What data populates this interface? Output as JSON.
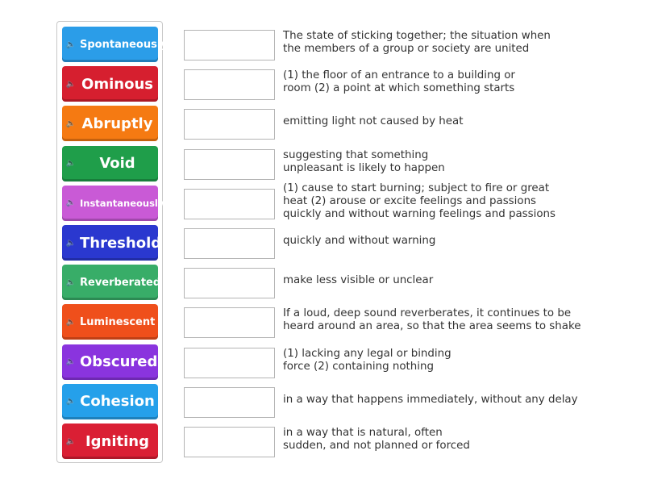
{
  "tiles": [
    {
      "label": "Spontaneously",
      "color": "#2b9de8",
      "size": "small"
    },
    {
      "label": "Ominous",
      "color": "#d61f2f",
      "size": "big"
    },
    {
      "label": "Abruptly",
      "color": "#f57a12",
      "size": "big"
    },
    {
      "label": "Void",
      "color": "#1f9e4a",
      "size": "big"
    },
    {
      "label": "Instantaneously",
      "color": "#c95ad6",
      "size": "tiny"
    },
    {
      "label": "Threshold",
      "color": "#2a38cf",
      "size": "big"
    },
    {
      "label": "Reverberated",
      "color": "#38ad68",
      "size": "small"
    },
    {
      "label": "Luminescent",
      "color": "#ef4f1b",
      "size": "small"
    },
    {
      "label": "Obscured",
      "color": "#8a34de",
      "size": "big"
    },
    {
      "label": "Cohesion",
      "color": "#25a0ea",
      "size": "big"
    },
    {
      "label": "Igniting",
      "color": "#da1f34",
      "size": "big"
    }
  ],
  "definitions": [
    "The state of sticking together; the situation when\nthe members of a group or society are united",
    "(1) the floor of an entrance to a building or\nroom (2) a point at which something starts",
    "emitting light not caused by heat",
    "suggesting that something\nunpleasant is likely to happen",
    "(1) cause to start burning; subject to fire or great\nheat (2) arouse or excite feelings and passions\nquickly and without warning feelings and passions",
    "quickly and without warning",
    "make less visible or unclear",
    "If a loud, deep sound reverberates, it continues to be\nheard around an area, so that the area seems to shake",
    "(1) lacking any legal or binding\nforce (2) containing nothing",
    "in a way that happens immediately, without any delay",
    "in a way that is natural, often\nsudden, and not planned or forced"
  ],
  "speaker_icon": "speaker-icon"
}
